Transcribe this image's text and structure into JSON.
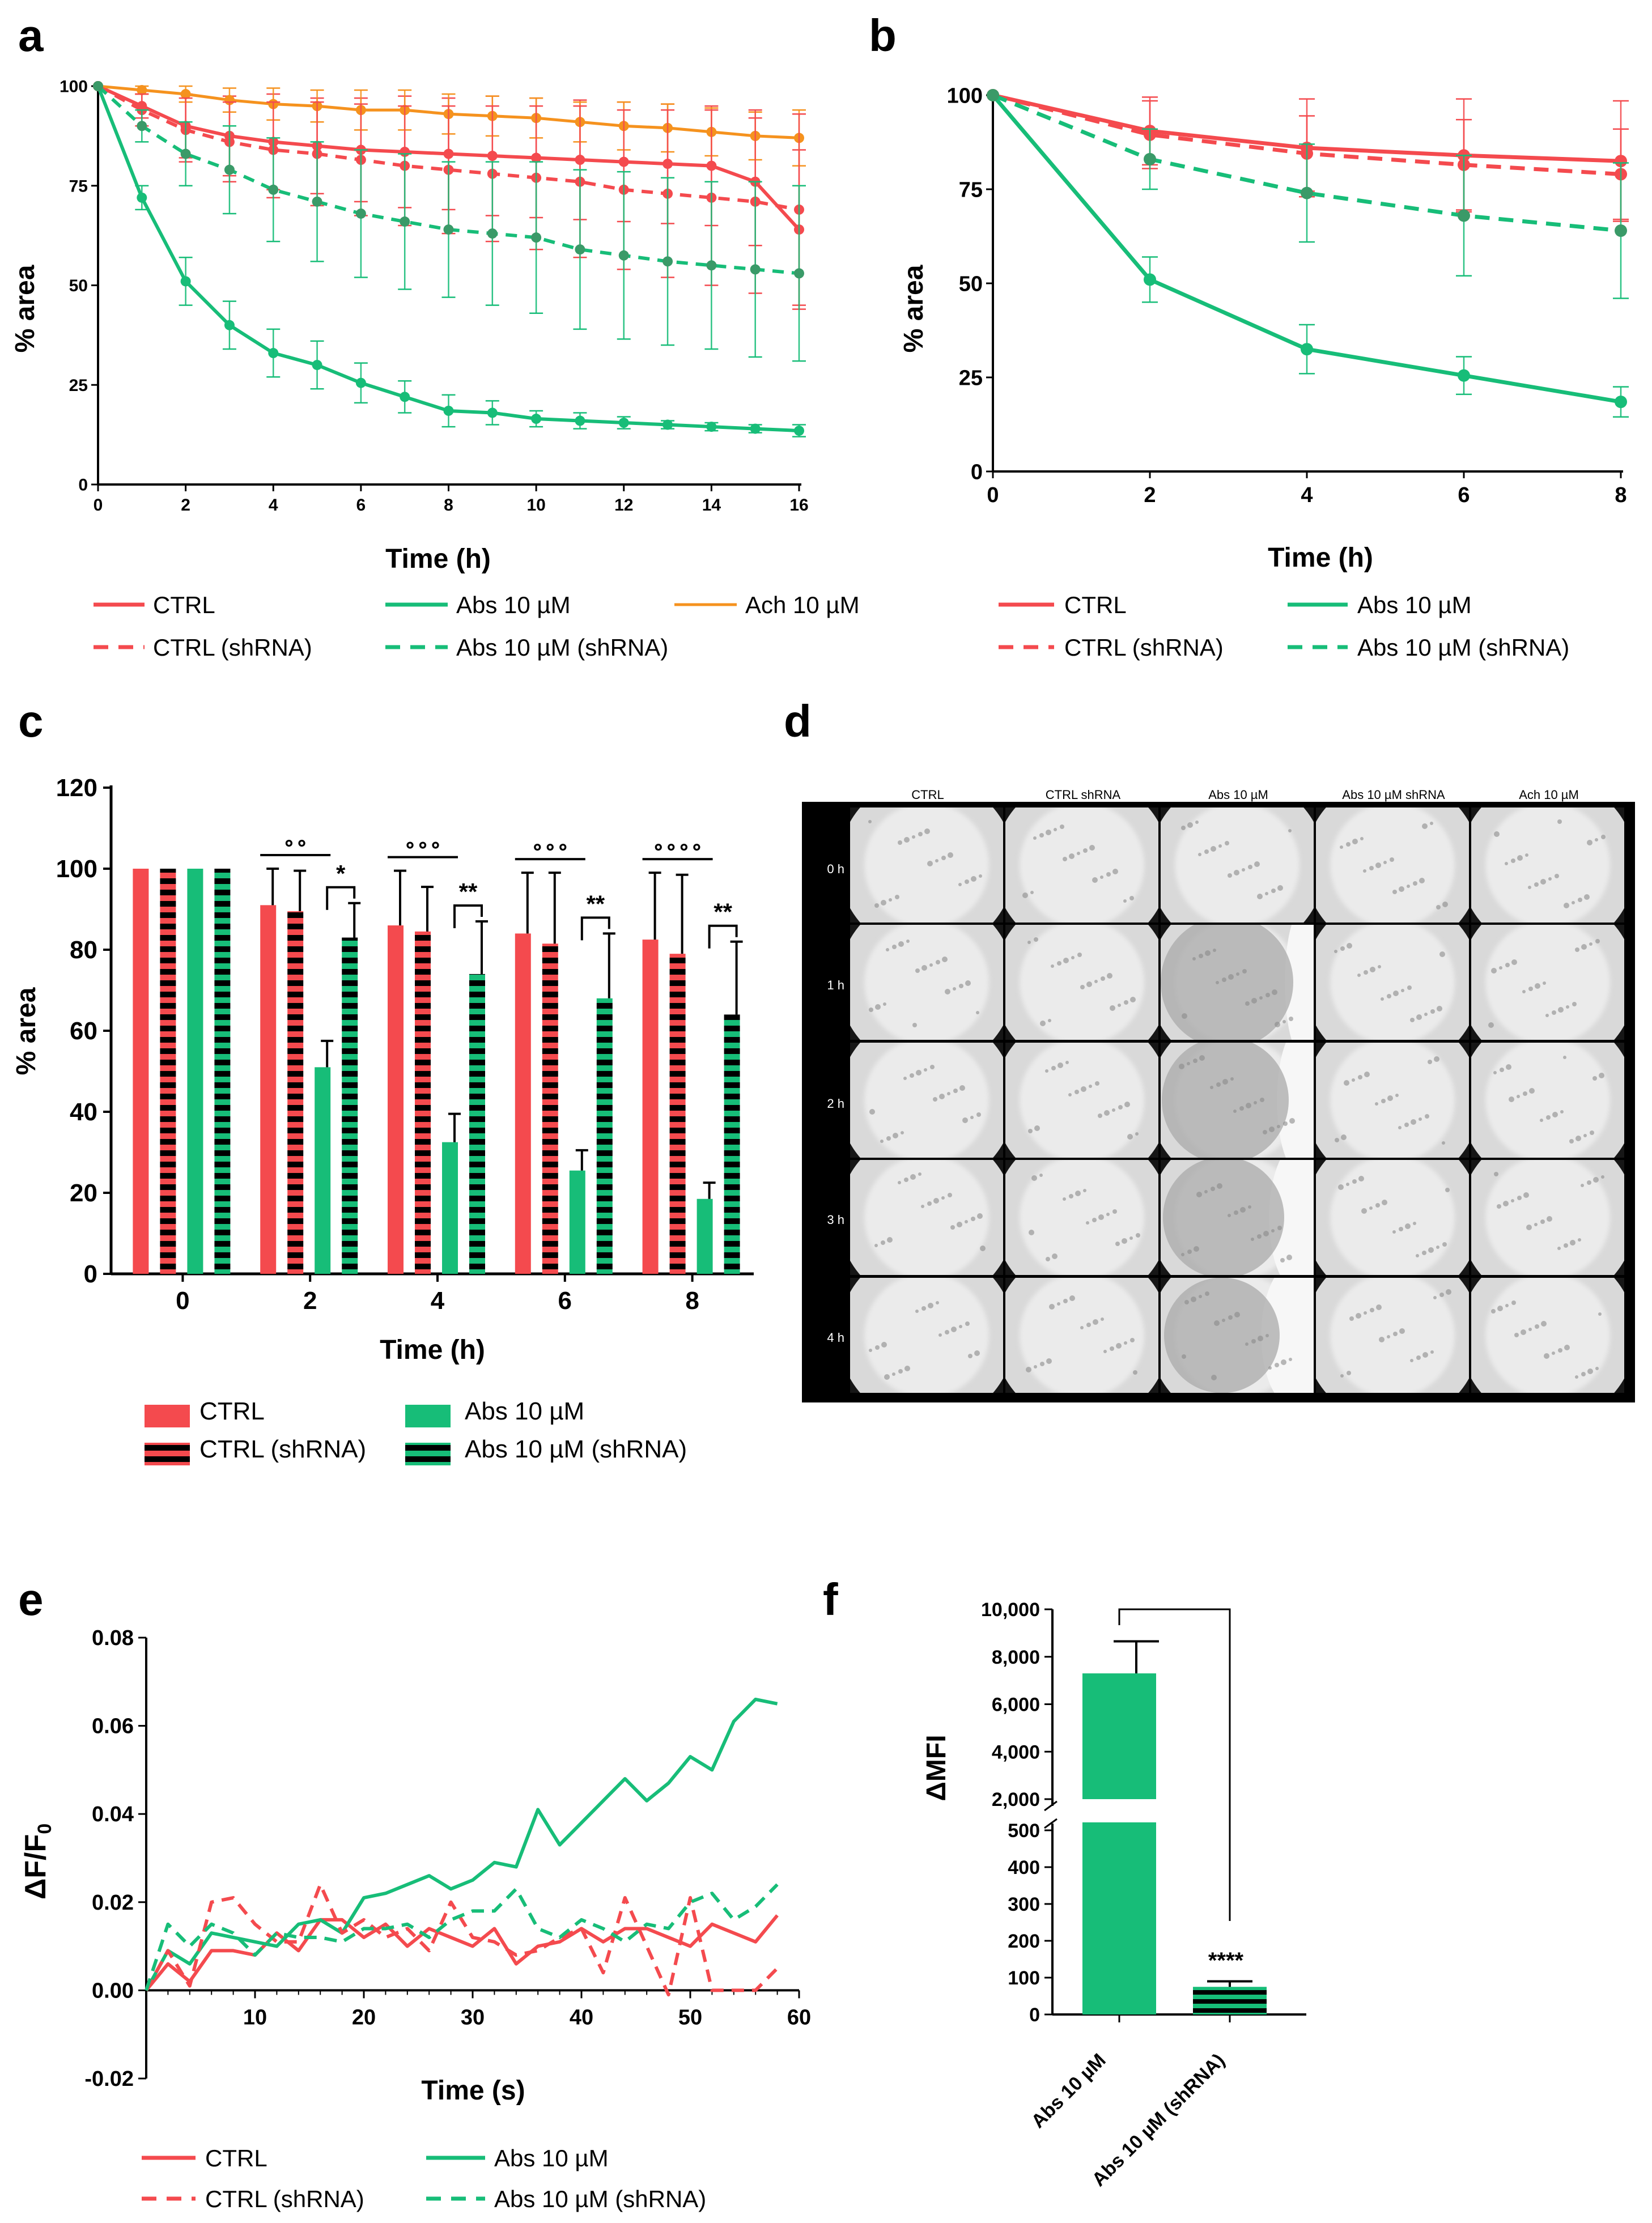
{
  "panel_labels": {
    "a": "a",
    "b": "b",
    "c": "c",
    "d": "d",
    "e": "e",
    "f": "f"
  },
  "colors": {
    "ctrl": "#F44A4E",
    "abs": "#17BD78",
    "ach": "#F5921E",
    "black": "#000000"
  },
  "chart_data": [
    {
      "id": "a",
      "type": "line",
      "xlabel": "Time (h)",
      "ylabel": "% area",
      "xlim": [
        0,
        16
      ],
      "ylim": [
        0,
        100
      ],
      "xticks": [
        0,
        2,
        4,
        6,
        8,
        10,
        12,
        14,
        16
      ],
      "yticks": [
        0,
        25,
        50,
        75,
        100
      ],
      "x": [
        0,
        1,
        2,
        3,
        4,
        5,
        6,
        7,
        8,
        9,
        10,
        11,
        12,
        13,
        14,
        15,
        16
      ],
      "series": [
        {
          "name": "CTRL",
          "color": "ctrl",
          "dashed": false,
          "values": [
            100,
            95,
            90,
            87.5,
            86,
            85,
            84,
            83.5,
            83,
            82.5,
            82,
            81.5,
            81,
            80.5,
            80,
            76,
            64
          ],
          "err": [
            0,
            3,
            8,
            10,
            12,
            12,
            13,
            14,
            14,
            15,
            15,
            15,
            15,
            15,
            15,
            16,
            20
          ]
        },
        {
          "name": "Abs 10 µM",
          "color": "abs",
          "dashed": false,
          "values": [
            100,
            72,
            51,
            40,
            33,
            30,
            25.5,
            22,
            18.5,
            18,
            16.5,
            16,
            15.5,
            15,
            14.5,
            14,
            13.5
          ],
          "err": [
            0,
            3,
            6,
            6,
            6,
            6,
            5,
            4,
            4,
            3,
            2,
            2,
            1.5,
            1,
            1,
            1,
            1.5
          ]
        },
        {
          "name": "Ach 10 µM",
          "color": "ach",
          "dashed": false,
          "values": [
            100,
            99,
            98,
            96.5,
            95.5,
            95,
            94,
            94,
            93,
            92.5,
            92,
            91,
            90,
            89.5,
            88.5,
            87.5,
            87
          ],
          "err": [
            0,
            1,
            2,
            3,
            4,
            4,
            5,
            5,
            5,
            5,
            5,
            5,
            6,
            6,
            6,
            6,
            7
          ]
        },
        {
          "name": "CTRL (shRNA)",
          "color": "ctrl",
          "dashed": true,
          "values": [
            100,
            94,
            89,
            86,
            84,
            83,
            81.5,
            80,
            79,
            78,
            77,
            76,
            74,
            73,
            72,
            71,
            69
          ],
          "err": [
            0,
            4,
            8,
            10,
            12,
            13,
            14,
            15,
            16,
            17,
            18,
            19,
            20,
            21,
            22,
            23,
            24
          ]
        },
        {
          "name": "Abs 10 µM (shRNA)",
          "color": "abs",
          "dashed": true,
          "values": [
            100,
            90,
            83,
            79,
            74,
            71,
            68,
            66,
            64,
            63,
            62,
            59,
            57.5,
            56,
            55,
            54,
            53
          ],
          "err": [
            0,
            4,
            8,
            11,
            13,
            15,
            16,
            17,
            17,
            18,
            19,
            20,
            21,
            21,
            21,
            22,
            22
          ]
        }
      ],
      "legend": [
        {
          "label": "CTRL",
          "series": 0
        },
        {
          "label": "Abs 10 µM",
          "series": 1
        },
        {
          "label": "Ach 10 µM",
          "series": 2
        },
        {
          "label": "CTRL (shRNA)",
          "series": 3
        },
        {
          "label": "Abs 10 µM (shRNA)",
          "series": 4
        }
      ]
    },
    {
      "id": "b",
      "type": "line",
      "xlabel": "Time (h)",
      "ylabel": "% area",
      "xlim": [
        0,
        8
      ],
      "ylim": [
        0,
        100
      ],
      "xticks": [
        0,
        2,
        4,
        6,
        8
      ],
      "yticks": [
        0,
        25,
        50,
        75,
        100
      ],
      "x": [
        0,
        2,
        4,
        6,
        8
      ],
      "series": [
        {
          "name": "CTRL",
          "color": "ctrl",
          "dashed": false,
          "values": [
            100,
            90.5,
            86,
            84,
            82.5
          ],
          "err": [
            0,
            9,
            13,
            15,
            16
          ]
        },
        {
          "name": "Abs 10 µM",
          "color": "abs",
          "dashed": false,
          "values": [
            100,
            51,
            32.5,
            25.5,
            18.5
          ],
          "err": [
            0,
            6,
            6.5,
            5,
            4
          ]
        },
        {
          "name": "CTRL (shRNA)",
          "color": "ctrl",
          "dashed": true,
          "values": [
            100,
            89.5,
            84.5,
            81.5,
            79
          ],
          "err": [
            0,
            9,
            10,
            12,
            12
          ]
        },
        {
          "name": "Abs 10 µM (shRNA)",
          "color": "abs",
          "dashed": true,
          "values": [
            100,
            83,
            74,
            68,
            64
          ],
          "err": [
            0,
            8,
            13,
            16,
            18
          ]
        }
      ],
      "legend": [
        {
          "label": "CTRL",
          "series": 0
        },
        {
          "label": "Abs 10 µM",
          "series": 1
        },
        {
          "label": "CTRL (shRNA)",
          "series": 2
        },
        {
          "label": "Abs 10 µM (shRNA)",
          "series": 3
        }
      ]
    },
    {
      "id": "c",
      "type": "bar",
      "xlabel": "Time (h)",
      "ylabel": "% area",
      "ylim": [
        0,
        120
      ],
      "yticks": [
        0,
        20,
        40,
        60,
        80,
        100,
        120
      ],
      "categories": [
        "0",
        "2",
        "4",
        "6",
        "8"
      ],
      "series": [
        {
          "name": "CTRL",
          "color": "ctrl",
          "striped": false,
          "values": [
            100,
            91,
            86,
            84,
            82.5
          ],
          "err": [
            0,
            9,
            13.5,
            15,
            16.5
          ]
        },
        {
          "name": "CTRL (shRNA)",
          "color": "ctrl",
          "striped": true,
          "values": [
            100,
            89.5,
            84.5,
            81.5,
            79
          ],
          "err": [
            0,
            10,
            11,
            17.5,
            19.5
          ]
        },
        {
          "name": "Abs 10 µM",
          "color": "abs",
          "striped": false,
          "values": [
            100,
            51,
            32.5,
            25.5,
            18.5
          ],
          "err": [
            0,
            6.5,
            7,
            5,
            4
          ]
        },
        {
          "name": "Abs 10 µM (shRNA)",
          "color": "abs",
          "striped": true,
          "values": [
            100,
            83,
            74,
            68,
            64
          ],
          "err": [
            0,
            8.5,
            13,
            16,
            18
          ]
        }
      ],
      "annotations": [
        {
          "category": "2",
          "ctrl_vs_abs": "∘∘",
          "abs_vs_abs_shrna": "*"
        },
        {
          "category": "4",
          "ctrl_vs_abs": "∘∘∘",
          "abs_vs_abs_shrna": "**"
        },
        {
          "category": "6",
          "ctrl_vs_abs": "∘∘∘",
          "abs_vs_abs_shrna": "**"
        },
        {
          "category": "8",
          "ctrl_vs_abs": "∘∘∘∘",
          "abs_vs_abs_shrna": "**"
        }
      ],
      "legend": [
        {
          "label": "CTRL",
          "series": 0
        },
        {
          "label": "Abs 10 µM",
          "series": 2
        },
        {
          "label": "CTRL (shRNA)",
          "series": 1
        },
        {
          "label": "Abs 10 µM (shRNA)",
          "series": 3
        }
      ]
    },
    {
      "id": "e",
      "type": "line",
      "xlabel": "Time (s)",
      "ylabel": "ΔF/F",
      "ylabel_sub": "0",
      "xlim": [
        0,
        60
      ],
      "ylim": [
        -0.02,
        0.08
      ],
      "xticks": [
        10,
        20,
        30,
        40,
        50,
        60
      ],
      "yticks": [
        "-0.02",
        "0.00",
        "0.02",
        "0.04",
        "0.06",
        "0.08"
      ],
      "x": [
        0,
        2,
        4,
        6,
        8,
        10,
        12,
        14,
        16,
        18,
        20,
        22,
        24,
        26,
        28,
        30,
        32,
        34,
        36,
        38,
        40,
        42,
        44,
        46,
        48,
        50,
        52,
        54,
        56,
        58
      ],
      "series": [
        {
          "name": "CTRL",
          "color": "ctrl",
          "dashed": false,
          "values": [
            0.0,
            0.006,
            0.002,
            0.009,
            0.009,
            0.008,
            0.013,
            0.009,
            0.016,
            0.016,
            0.012,
            0.015,
            0.01,
            0.014,
            0.012,
            0.01,
            0.014,
            0.006,
            0.01,
            0.011,
            0.014,
            0.011,
            0.014,
            0.014,
            0.012,
            0.01,
            0.015,
            0.013,
            0.011,
            0.017
          ]
        },
        {
          "name": "Abs 10 µM",
          "color": "abs",
          "dashed": false,
          "values": [
            0.0,
            0.009,
            0.006,
            0.013,
            0.012,
            0.011,
            0.01,
            0.015,
            0.016,
            0.013,
            0.021,
            0.022,
            0.024,
            0.026,
            0.023,
            0.025,
            0.029,
            0.028,
            0.041,
            0.033,
            0.038,
            0.043,
            0.048,
            0.043,
            0.047,
            0.053,
            0.05,
            0.061,
            0.066,
            0.065
          ]
        },
        {
          "name": "CTRL (shRNA)",
          "color": "ctrl",
          "dashed": true,
          "values": [
            0.0,
            0.009,
            0.001,
            0.02,
            0.021,
            0.015,
            0.011,
            0.011,
            0.024,
            0.013,
            0.016,
            0.012,
            0.014,
            0.009,
            0.02,
            0.012,
            0.011,
            0.008,
            0.009,
            0.012,
            0.014,
            0.004,
            0.021,
            0.01,
            -0.001,
            0.021,
            0.0,
            0.0,
            0.0,
            0.005
          ]
        },
        {
          "name": "Abs 10 µM (shRNA)",
          "color": "abs",
          "dashed": true,
          "values": [
            0.0,
            0.015,
            0.01,
            0.015,
            0.013,
            0.008,
            0.013,
            0.012,
            0.012,
            0.011,
            0.014,
            0.014,
            0.015,
            0.012,
            0.016,
            0.018,
            0.018,
            0.023,
            0.014,
            0.012,
            0.016,
            0.014,
            0.011,
            0.015,
            0.014,
            0.02,
            0.022,
            0.016,
            0.019,
            0.024
          ]
        }
      ],
      "legend": [
        {
          "label": "CTRL",
          "series": 0
        },
        {
          "label": "Abs 10 µM",
          "series": 1
        },
        {
          "label": "CTRL (shRNA)",
          "series": 2
        },
        {
          "label": "Abs 10 µM (shRNA)",
          "series": 3
        }
      ]
    },
    {
      "id": "f",
      "type": "bar",
      "ylabel": "ΔMFI",
      "broken_axis": true,
      "yticks_upper": [
        "2,000",
        "4,000",
        "6,000",
        "8,000",
        "10,000"
      ],
      "yticks_lower": [
        "0",
        "100",
        "200",
        "300",
        "400",
        "500"
      ],
      "categories": [
        "Abs 10 µM",
        "Abs 10 µM (shRNA)"
      ],
      "values": [
        7300,
        75
      ],
      "err": [
        1350,
        15
      ],
      "significance": "****"
    }
  ],
  "panel_d": {
    "columns": [
      "CTRL",
      "CTRL shRNA",
      "Abs 10 µM",
      "Abs 10 µM shRNA",
      "Ach 10 µM"
    ],
    "rows": [
      "0 h",
      "1 h",
      "2 h",
      "3 h",
      "4 h"
    ]
  }
}
